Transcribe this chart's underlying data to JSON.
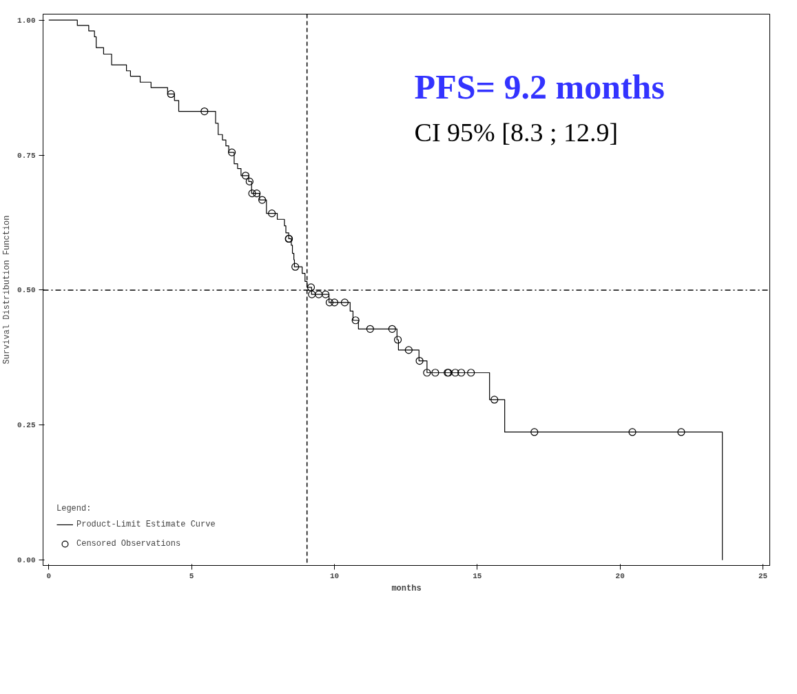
{
  "chart_data": {
    "type": "step",
    "xlabel": "months",
    "ylabel": "Survival Distribution Function",
    "legend_title": "Legend:",
    "annotations": [
      "PFS= 9.2 months",
      "CI 95% [8.3 ; 12.9]"
    ],
    "xlim": [
      -0.2,
      25.24
    ],
    "ylim": [
      -0.01,
      1.011
    ],
    "xticks": [
      0,
      5,
      10,
      15,
      20,
      25
    ],
    "yticks": [
      {
        "value": 0,
        "label": "0.00"
      },
      {
        "value": 0.25,
        "label": "0.25"
      },
      {
        "value": 0.5,
        "label": "0.50"
      },
      {
        "value": 0.75,
        "label": "0.75"
      },
      {
        "value": 1,
        "label": "1.00"
      }
    ],
    "grid": false,
    "legend": "bottom left",
    "ref_lines": [
      {
        "axis": "x",
        "value": 9.04,
        "line_style": "dashed",
        "color": "#000000"
      },
      {
        "axis": "y",
        "value": 0.5,
        "line_style": "dashdot",
        "color": "#000000"
      }
    ],
    "series": [
      {
        "name": "Product-Limit Estimate Curve",
        "color": "#000000",
        "line_style": "solid",
        "x": [
          0,
          1.0,
          1.4,
          1.6,
          1.66,
          1.92,
          2.2,
          2.72,
          2.86,
          3.2,
          3.58,
          4.16,
          4.4,
          4.55,
          5.84,
          5.93,
          6.08,
          6.2,
          6.3,
          6.49,
          6.61,
          6.73,
          7.0,
          7.1,
          7.38,
          7.62,
          8.0,
          8.25,
          8.3,
          8.4,
          8.49,
          8.53,
          8.58,
          8.6,
          8.87,
          8.97,
          9.04,
          9.2,
          9.81,
          10.55,
          10.65,
          10.84,
          12.19,
          12.24,
          12.96,
          13.24,
          15.43,
          15.96,
          23.58
        ],
        "values": [
          1.0,
          0.99,
          0.98,
          0.969,
          0.949,
          0.937,
          0.917,
          0.906,
          0.896,
          0.885,
          0.875,
          0.863,
          0.851,
          0.831,
          0.809,
          0.788,
          0.778,
          0.767,
          0.755,
          0.734,
          0.725,
          0.712,
          0.701,
          0.679,
          0.667,
          0.642,
          0.631,
          0.619,
          0.606,
          0.595,
          0.583,
          0.568,
          0.556,
          0.543,
          0.531,
          0.516,
          0.505,
          0.492,
          0.477,
          0.461,
          0.444,
          0.428,
          0.408,
          0.389,
          0.369,
          0.347,
          0.297,
          0.237,
          0.0
        ]
      },
      {
        "name": "Censored Observations",
        "type": "scatter",
        "color": "#000000",
        "marker": "circle",
        "x": [
          4.28,
          5.45,
          6.41,
          6.89,
          7.03,
          7.12,
          7.28,
          7.47,
          7.81,
          8.4,
          8.41,
          8.63,
          9.18,
          9.21,
          9.45,
          9.69,
          9.83,
          10.0,
          10.36,
          10.74,
          11.25,
          12.02,
          12.22,
          12.6,
          12.98,
          13.24,
          13.53,
          13.96,
          13.99,
          14.23,
          14.44,
          14.78,
          15.6,
          17.0,
          20.43,
          22.14
        ],
        "values": [
          0.863,
          0.831,
          0.755,
          0.712,
          0.701,
          0.679,
          0.679,
          0.667,
          0.642,
          0.595,
          0.595,
          0.543,
          0.505,
          0.492,
          0.492,
          0.492,
          0.477,
          0.477,
          0.477,
          0.444,
          0.428,
          0.428,
          0.408,
          0.389,
          0.369,
          0.347,
          0.347,
          0.347,
          0.347,
          0.347,
          0.347,
          0.347,
          0.297,
          0.237,
          0.237,
          0.237
        ]
      }
    ]
  }
}
